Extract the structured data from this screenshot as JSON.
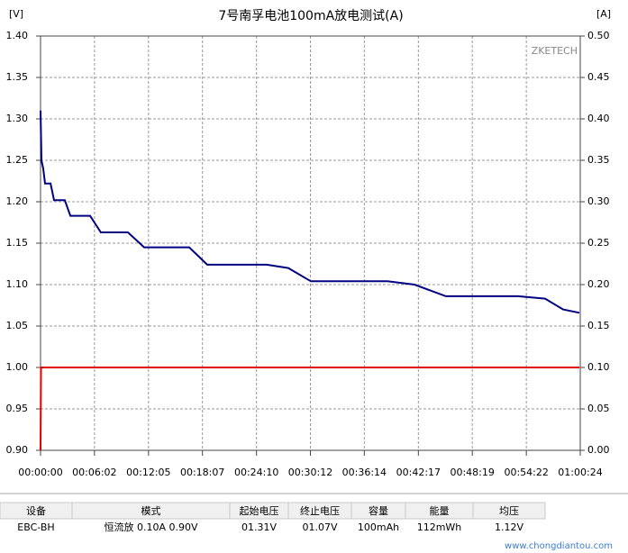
{
  "chart_data": {
    "type": "line",
    "title": "7号南孚电池100mA放电测试(A)",
    "y_unit": "[V]",
    "y2_unit": "[A]",
    "watermark": "ZKETECH",
    "xlim": [
      0,
      3624
    ],
    "xticks": [
      {
        "value": 0,
        "label": "00:00:00"
      },
      {
        "value": 362,
        "label": "00:06:02"
      },
      {
        "value": 725,
        "label": "00:12:05"
      },
      {
        "value": 1087,
        "label": "00:18:07"
      },
      {
        "value": 1450,
        "label": "00:24:10"
      },
      {
        "value": 1812,
        "label": "00:30:12"
      },
      {
        "value": 2174,
        "label": "00:36:14"
      },
      {
        "value": 2537,
        "label": "00:42:17"
      },
      {
        "value": 2899,
        "label": "00:48:19"
      },
      {
        "value": 3262,
        "label": "00:54:22"
      },
      {
        "value": 3624,
        "label": "01:00:24"
      }
    ],
    "ylim": [
      0.9,
      1.4
    ],
    "yticks": [
      {
        "value": 0.9,
        "label": "0.90"
      },
      {
        "value": 0.95,
        "label": "0.95"
      },
      {
        "value": 1.0,
        "label": "1.00"
      },
      {
        "value": 1.05,
        "label": "1.05"
      },
      {
        "value": 1.1,
        "label": "1.10"
      },
      {
        "value": 1.15,
        "label": "1.15"
      },
      {
        "value": 1.2,
        "label": "1.20"
      },
      {
        "value": 1.25,
        "label": "1.25"
      },
      {
        "value": 1.3,
        "label": "1.30"
      },
      {
        "value": 1.35,
        "label": "1.35"
      },
      {
        "value": 1.4,
        "label": "1.40"
      }
    ],
    "y2lim": [
      0,
      0.5
    ],
    "y2ticks": [
      {
        "value": 0,
        "label": "0.00"
      },
      {
        "value": 0.05,
        "label": "0.05"
      },
      {
        "value": 0.1,
        "label": "0.10"
      },
      {
        "value": 0.15,
        "label": "0.15"
      },
      {
        "value": 0.2,
        "label": "0.20"
      },
      {
        "value": 0.25,
        "label": "0.25"
      },
      {
        "value": 0.3,
        "label": "0.30"
      },
      {
        "value": 0.35,
        "label": "0.35"
      },
      {
        "value": 0.4,
        "label": "0.40"
      },
      {
        "value": 0.45,
        "label": "0.45"
      },
      {
        "value": 0.5,
        "label": "0.50"
      }
    ],
    "grid": true,
    "series": [
      {
        "color": "#000080",
        "x": [
          0,
          6,
          18,
          30,
          67,
          91,
          163,
          200,
          333,
          405,
          587,
          696,
          998,
          1119,
          1519,
          1664,
          1815,
          2329,
          2511,
          2722,
          3206,
          3388,
          3509,
          3618
        ],
        "values": [
          1.31,
          1.25,
          1.24,
          1.222,
          1.222,
          1.202,
          1.202,
          1.183,
          1.183,
          1.163,
          1.163,
          1.145,
          1.145,
          1.124,
          1.124,
          1.12,
          1.104,
          1.104,
          1.1,
          1.086,
          1.086,
          1.083,
          1.07,
          1.066
        ]
      },
      {
        "color": "#e00000",
        "axis": "y2",
        "x": [
          0,
          3,
          3618
        ],
        "values": [
          0,
          0.1,
          0.1
        ]
      }
    ]
  },
  "table": {
    "headers": [
      "设备",
      "模式",
      "起始电压",
      "终止电压",
      "容量",
      "能量",
      "均压"
    ],
    "rows": [
      [
        "EBC-BH",
        "恒流放  0.10A  0.90V",
        "01.31V",
        "01.07V",
        "100mAh",
        "112mWh",
        "1.12V"
      ]
    ]
  },
  "site": "www.chongdiantou.com"
}
